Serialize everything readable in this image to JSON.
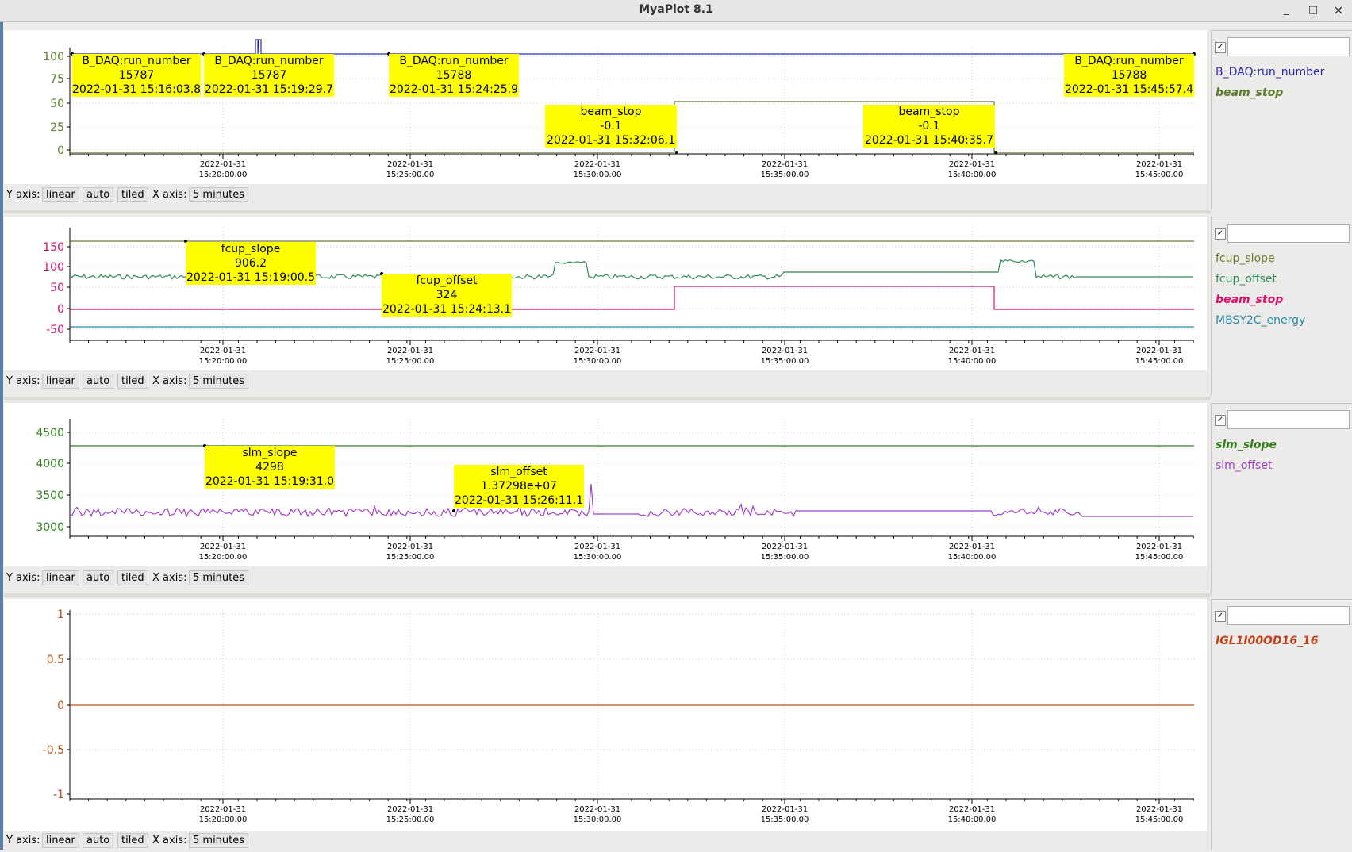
{
  "window": {
    "title": "MyaPlot 8.1",
    "minimize": "_",
    "maximize": "□",
    "close": "×"
  },
  "controls": {
    "yaxis_label": "Y axis:",
    "linear": "linear",
    "auto": "auto",
    "tiled": "tiled",
    "xaxis_label": "X axis:",
    "xrange": "5 minutes"
  },
  "time_ticks": [
    {
      "date": "2022-01-31",
      "time": "15:20:00.00"
    },
    {
      "date": "2022-01-31",
      "time": "15:25:00.00"
    },
    {
      "date": "2022-01-31",
      "time": "15:30:00.00"
    },
    {
      "date": "2022-01-31",
      "time": "15:35:00.00"
    },
    {
      "date": "2022-01-31",
      "time": "15:40:00.00"
    },
    {
      "date": "2022-01-31",
      "time": "15:45:00.00"
    }
  ],
  "panels": [
    {
      "yticks": [
        "100",
        "75",
        "50",
        "25",
        "0"
      ],
      "ytick_color": "#5a7d2a",
      "legend": [
        {
          "name": "B_DAQ:run_number",
          "color": "#2a2aaa",
          "italic": false
        },
        {
          "name": "beam_stop",
          "color": "#5a7d2a",
          "italic": true
        }
      ],
      "annotations": [
        {
          "name": "B_DAQ:run_number",
          "value": "15787",
          "time": "2022-01-31 15:16:03.8"
        },
        {
          "name": "B_DAQ:run_number",
          "value": "15787",
          "time": "2022-01-31 15:19:29.7"
        },
        {
          "name": "B_DAQ:run_number",
          "value": "15788",
          "time": "2022-01-31 15:24:25.9"
        },
        {
          "name": "beam_stop",
          "value": "-0.1",
          "time": "2022-01-31 15:32:06.1"
        },
        {
          "name": "beam_stop",
          "value": "-0.1",
          "time": "2022-01-31 15:40:35.7"
        },
        {
          "name": "B_DAQ:run_number",
          "value": "15788",
          "time": "2022-01-31 15:45:57.4"
        }
      ]
    },
    {
      "yticks": [
        "150",
        "100",
        "50",
        "0",
        "-50"
      ],
      "ytick_color": "#cc1166",
      "legend": [
        {
          "name": "fcup_slope",
          "color": "#6b7d2a",
          "italic": false
        },
        {
          "name": "fcup_offset",
          "color": "#2e8b57",
          "italic": false
        },
        {
          "name": "beam_stop",
          "color": "#e0106e",
          "italic": true
        },
        {
          "name": "MBSY2C_energy",
          "color": "#2a8aa8",
          "italic": false
        }
      ],
      "annotations": [
        {
          "name": "fcup_slope",
          "value": "906.2",
          "time": "2022-01-31 15:19:00.5"
        },
        {
          "name": "fcup_offset",
          "value": "324",
          "time": "2022-01-31 15:24:13.1"
        }
      ]
    },
    {
      "yticks": [
        "4500",
        "4000",
        "3500",
        "3000"
      ],
      "ytick_color": "#2e7d1a",
      "legend": [
        {
          "name": "slm_slope",
          "color": "#2e7d1a",
          "italic": true
        },
        {
          "name": "slm_offset",
          "color": "#a040c8",
          "italic": false
        }
      ],
      "annotations": [
        {
          "name": "slm_slope",
          "value": "4298",
          "time": "2022-01-31 15:19:31.0"
        },
        {
          "name": "slm_offset",
          "value": "1.37298e+07",
          "time": "2022-01-31 15:26:11.1"
        }
      ]
    },
    {
      "yticks": [
        "1",
        "0.5",
        "0",
        "-0.5",
        "-1"
      ],
      "ytick_color": "#b8501a",
      "legend": [
        {
          "name": "IGL1I00OD16_16",
          "color": "#c0401a",
          "italic": true
        }
      ],
      "annotations": []
    }
  ]
}
